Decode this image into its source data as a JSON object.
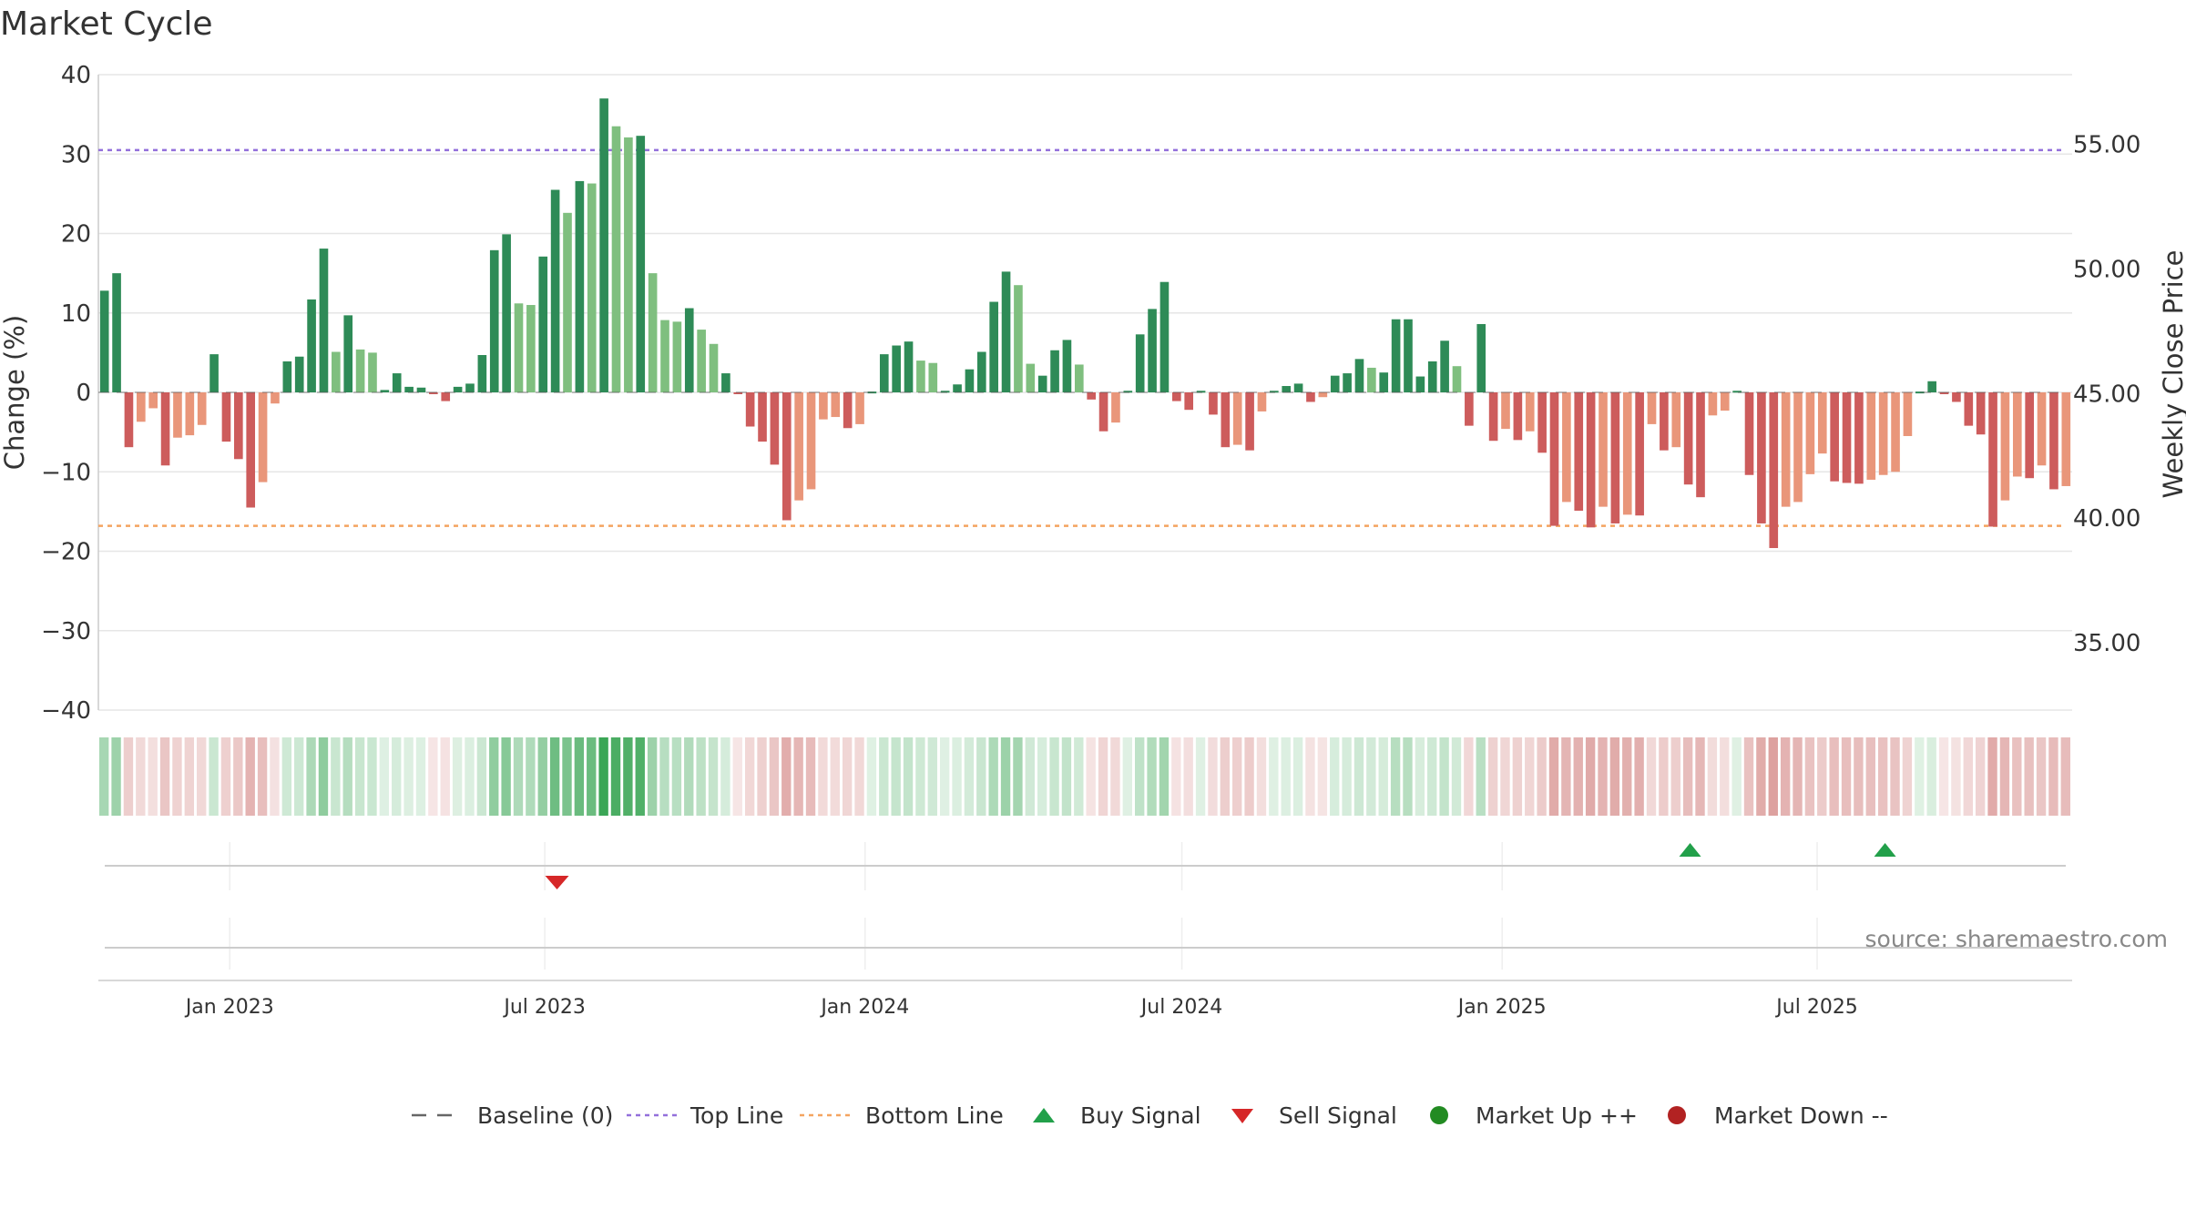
{
  "chart_data": {
    "type": "bar",
    "title": "Market Cycle",
    "ylabel": "Change (%)",
    "y2label": "Weekly Close Price",
    "ylim": [
      -40,
      40
    ],
    "yticks": [
      40,
      30,
      20,
      10,
      0,
      -10,
      -20,
      -30,
      -40
    ],
    "yticks_labels": [
      "40",
      "30",
      "20",
      "10",
      "0",
      "−10",
      "−20",
      "−30",
      "−40"
    ],
    "y2ticks": [
      55.0,
      50.0,
      45.0,
      40.0,
      35.0
    ],
    "y2ticks_labels": [
      "55.00",
      "50.00",
      "45.00",
      "40.00",
      "35.00"
    ],
    "y2lim": [
      32.3,
      57.8
    ],
    "top_line": 30.5,
    "bottom_line": -16.8,
    "x_start": "2022-10-21",
    "bar_interval_days": 7,
    "xticks": [
      {
        "date": "2023-01-01",
        "label": "Jan 2023"
      },
      {
        "date": "2023-07-01",
        "label": "Jul 2023"
      },
      {
        "date": "2024-01-01",
        "label": "Jan 2024"
      },
      {
        "date": "2024-07-01",
        "label": "Jul 2024"
      },
      {
        "date": "2025-01-01",
        "label": "Jan 2025"
      },
      {
        "date": "2025-07-01",
        "label": "Jul 2025"
      }
    ],
    "values": [
      12.8,
      15.0,
      -6.9,
      -3.7,
      -2.0,
      -9.2,
      -5.7,
      -5.4,
      -4.1,
      4.8,
      -6.2,
      -8.4,
      -14.5,
      -11.3,
      -1.4,
      3.9,
      4.5,
      11.7,
      18.1,
      5.1,
      9.7,
      5.4,
      5.0,
      0.3,
      2.4,
      0.7,
      0.6,
      -0.2,
      -1.1,
      0.7,
      1.1,
      4.7,
      17.9,
      19.9,
      11.2,
      11.0,
      17.1,
      25.5,
      22.6,
      26.6,
      26.3,
      37.0,
      33.5,
      32.1,
      32.3,
      15.0,
      9.1,
      8.9,
      10.6,
      7.9,
      6.1,
      2.4,
      -0.2,
      -4.3,
      -6.2,
      -9.1,
      -16.1,
      -13.6,
      -12.2,
      -3.4,
      -3.1,
      -4.5,
      -4.0,
      0.1,
      4.8,
      5.9,
      6.4,
      4.0,
      3.7,
      0.2,
      1.0,
      2.9,
      5.1,
      11.4,
      15.2,
      13.5,
      3.6,
      2.1,
      5.3,
      6.6,
      3.5,
      -0.9,
      -4.9,
      -3.8,
      0.2,
      7.3,
      10.5,
      13.9,
      -1.1,
      -2.2,
      0.2,
      -2.8,
      -6.9,
      -6.6,
      -7.3,
      -2.4,
      0.2,
      0.8,
      1.1,
      -1.2,
      -0.6,
      2.1,
      2.4,
      4.2,
      3.1,
      2.5,
      9.2,
      9.2,
      2.0,
      3.9,
      6.5,
      3.3,
      -4.2,
      8.6,
      -6.1,
      -4.6,
      -6.0,
      -4.9,
      -7.6,
      -16.8,
      -13.8,
      -14.9,
      -17.0,
      -14.4,
      -16.5,
      -15.4,
      -15.5,
      -4.0,
      -7.3,
      -6.9,
      -11.6,
      -13.2,
      -2.9,
      -2.3,
      0.2,
      -10.4,
      -16.5,
      -19.6,
      -14.4,
      -13.8,
      -10.3,
      -7.7,
      -11.2,
      -11.4,
      -11.5,
      -11.0,
      -10.4,
      -10.0,
      -5.5,
      0.1,
      1.4,
      -0.2,
      -1.2,
      -4.2,
      -5.3,
      -16.9,
      -13.6,
      -10.6,
      -10.8,
      -9.2,
      -12.2,
      -11.8
    ],
    "palette": {
      "up_strong": "#2e8b57",
      "up_weak": "#7fbf7f",
      "down_strong": "#cd5c5c",
      "down_weak": "#e9967a",
      "top_line": "#9370db",
      "bottom_line": "#f4a460",
      "buy": "#22a04a",
      "sell": "#d62728",
      "market_up": "#228b22",
      "market_down": "#b22222"
    },
    "signals": [
      {
        "type": "sell",
        "date": "2023-07-08"
      },
      {
        "type": "buy",
        "date": "2025-04-19"
      },
      {
        "type": "buy",
        "date": "2025-08-09"
      }
    ],
    "legend": [
      {
        "label": "Baseline (0)",
        "kind": "dash"
      },
      {
        "label": "Top Line",
        "kind": "dot-purple"
      },
      {
        "label": "Bottom Line",
        "kind": "dot-orange"
      },
      {
        "label": "Buy Signal",
        "kind": "triangle-up"
      },
      {
        "label": "Sell Signal",
        "kind": "triangle-down"
      },
      {
        "label": "Market Up ++",
        "kind": "circle-green"
      },
      {
        "label": "Market Down --",
        "kind": "circle-red"
      }
    ],
    "legend_position": "bottom-center",
    "grid": true,
    "source": "source: sharemaestro.com"
  }
}
